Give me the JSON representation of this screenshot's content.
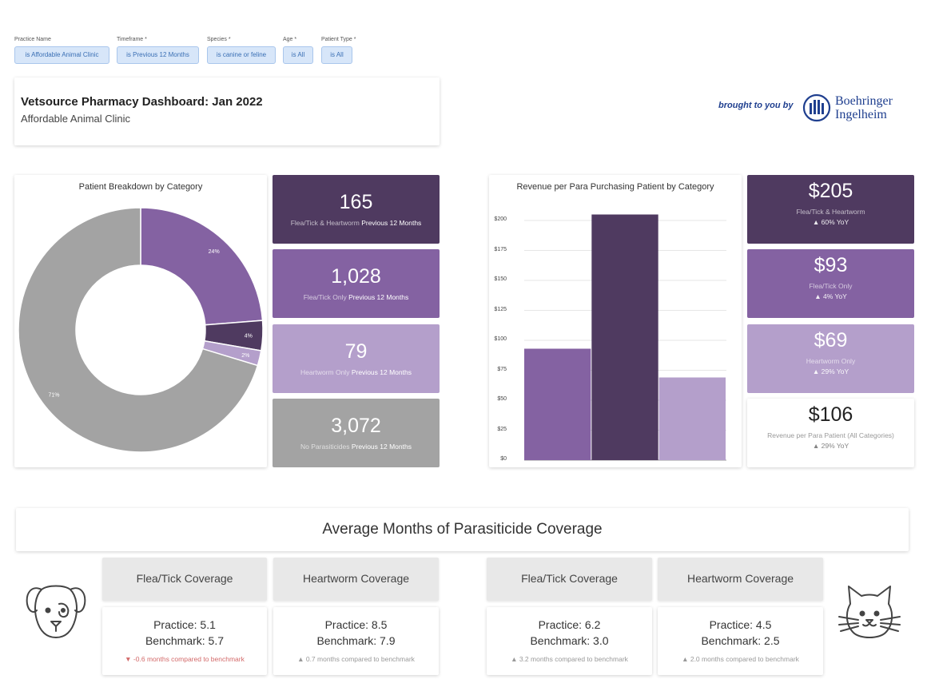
{
  "filters": [
    {
      "label": "Practice Name",
      "value": "is Affordable Animal Clinic"
    },
    {
      "label": "Timeframe *",
      "value": "is Previous 12 Months"
    },
    {
      "label": "Species *",
      "value": "is canine or feline"
    },
    {
      "label": "Age *",
      "value": "is All"
    },
    {
      "label": "Patient Type *",
      "value": "is All"
    }
  ],
  "header": {
    "title": "Vetsource Pharmacy Dashboard: Jan 2022",
    "subtitle": "Affordable Animal Clinic"
  },
  "sponsor": {
    "tagline": "brought to you by",
    "name_line1": "Boehringer",
    "name_line2": "Ingelheim",
    "color": "#1f3f8f"
  },
  "colors": {
    "dark_purple": "#4f3a60",
    "mid_purple": "#8462a2",
    "light_purple": "#b49fcb",
    "gray": "#a3a3a3"
  },
  "patient_kpis": [
    {
      "value": "165",
      "label": "Flea/Tick & Heartworm",
      "period": "Previous 12 Months",
      "color": "#4f3a60"
    },
    {
      "value": "1,028",
      "label": "Flea/Tick Only",
      "period": "Previous 12 Months",
      "color": "#8462a2"
    },
    {
      "value": "79",
      "label": "Heartworm Only",
      "period": "Previous 12 Months",
      "color": "#b49fcb"
    },
    {
      "value": "3,072",
      "label": "No Parasiticides",
      "period": "Previous 12 Months",
      "color": "#a3a3a3"
    }
  ],
  "revenue_kpis": [
    {
      "value": "$205",
      "label": "Flea/Tick & Heartworm",
      "yoy": "▲ 60% YoY",
      "color": "#4f3a60"
    },
    {
      "value": "$93",
      "label": "Flea/Tick Only",
      "yoy": "▲ 4% YoY",
      "color": "#8462a2"
    },
    {
      "value": "$69",
      "label": "Heartworm Only",
      "yoy": "▲ 29% YoY",
      "color": "#b49fcb"
    },
    {
      "value": "$106",
      "label": "Revenue per Para Patient (All Categories)",
      "yoy": "▲ 29% YoY",
      "color": "#ffffff"
    }
  ],
  "chart_data": [
    {
      "type": "pie",
      "title": "Patient Breakdown by Category",
      "donut": true,
      "slices": [
        {
          "name": "Flea/Tick Only",
          "value": 24,
          "label": "24%",
          "color": "#8462a2"
        },
        {
          "name": "Flea/Tick & Heartworm",
          "value": 4,
          "label": "4%",
          "color": "#4f3a60"
        },
        {
          "name": "Heartworm Only",
          "value": 2,
          "label": "2%",
          "color": "#b49fcb"
        },
        {
          "name": "No Parasiticides",
          "value": 71,
          "label": "71%",
          "color": "#a3a3a3"
        }
      ]
    },
    {
      "type": "bar",
      "title": "Revenue per Para Purchasing Patient by Category",
      "categories": [
        "Flea/Tick Only",
        "Flea/Tick & Heartworm",
        "Heartworm Only"
      ],
      "values": [
        93,
        205,
        69
      ],
      "colors": [
        "#8462a2",
        "#4f3a60",
        "#b49fcb"
      ],
      "ylim": [
        0,
        210
      ],
      "yticks": [
        0,
        25,
        50,
        75,
        100,
        125,
        150,
        175,
        200
      ],
      "ytick_labels": [
        "$0",
        "$25",
        "$50",
        "$75",
        "$100",
        "$125",
        "$150",
        "$175",
        "$200"
      ]
    }
  ],
  "coverage": {
    "title": "Average Months of Parasiticide Coverage",
    "dog": [
      {
        "head": "Flea/Tick Coverage",
        "practice": "Practice: 5.1",
        "benchmark": "Benchmark: 5.7",
        "compare": "▼ -0.6 months compared to benchmark"
      },
      {
        "head": "Heartworm Coverage",
        "practice": "Practice: 8.5",
        "benchmark": "Benchmark: 7.9",
        "compare": "▲ 0.7 months compared to benchmark"
      }
    ],
    "cat": [
      {
        "head": "Flea/Tick Coverage",
        "practice": "Practice: 6.2",
        "benchmark": "Benchmark: 3.0",
        "compare": "▲ 3.2 months compared to benchmark"
      },
      {
        "head": "Heartworm Coverage",
        "practice": "Practice: 4.5",
        "benchmark": "Benchmark: 2.5",
        "compare": "▲ 2.0 months compared to benchmark"
      }
    ],
    "down_color": "#d36a6a",
    "up_color": "#999999"
  }
}
